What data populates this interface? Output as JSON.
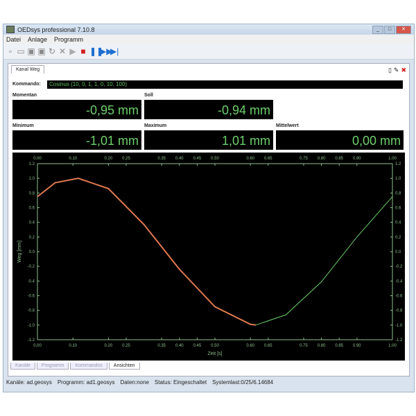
{
  "window": {
    "title": "OEDsys professional 7.10.8"
  },
  "menu": [
    "Datei",
    "Anlage",
    "Programm"
  ],
  "toolbar": {
    "icons": [
      "new-icon",
      "open-icon",
      "save-icon",
      "save-as-icon",
      "refresh-icon",
      "delete-icon",
      "play-icon",
      "stop-icon",
      "pause-icon",
      "step-icon",
      "skip-end-icon"
    ],
    "accent": "#1e6fd0",
    "stop_color": "#d42020"
  },
  "panel": {
    "tab": "Kanal Weg",
    "kommando_label": "Kommando:",
    "kommando_value": "Cosinus (10, 0, 1, 1, 0, 10, 100)"
  },
  "readouts": {
    "momentan": {
      "label": "Momentan",
      "value": "-0,95 mm"
    },
    "soll": {
      "label": "Soll",
      "value": "-0,94 mm"
    },
    "minimum": {
      "label": "Minimum",
      "value": "-1,01 mm"
    },
    "maximum": {
      "label": "Maximum",
      "value": "1,01 mm"
    },
    "mittelwert": {
      "label": "Mittelwert",
      "value": "0,00 mm"
    }
  },
  "chart_data": {
    "type": "line",
    "xlabel": "Zeit [s]",
    "ylabel": "Weg [mm]",
    "xlim": [
      0,
      1
    ],
    "ylim": [
      -1.2,
      1.2
    ],
    "xticks": [
      "0.00",
      "0.10",
      "0.20",
      "0.25",
      "0.35",
      "0.40",
      "0.45",
      "0.50",
      "0.60",
      "0.65",
      "0.75",
      "0.80",
      "0.85",
      "0.90",
      "1.00"
    ],
    "yticks": [
      "1.2",
      "1.0",
      "0.8",
      "0.6",
      "0.4",
      "0.2",
      "0.0",
      "-0.2",
      "-0.4",
      "-0.6",
      "-0.8",
      "-1.0",
      "-1.2"
    ],
    "series": [
      {
        "x": [
          0,
          0.05,
          0.115,
          0.2,
          0.3,
          0.4,
          0.5,
          0.6,
          0.615,
          0.7,
          0.8,
          0.9,
          1.0
        ],
        "y": [
          0.75,
          0.94,
          1.0,
          0.86,
          0.37,
          -0.24,
          -0.75,
          -0.99,
          -1.0,
          -0.86,
          -0.41,
          0.2,
          0.75
        ],
        "colors": [
          "#e07a50",
          "#6ccf6c"
        ]
      }
    ],
    "grid": false
  },
  "bottom_tabs": [
    "Kanäle",
    "Programm",
    "Kommandos",
    "Ansichten"
  ],
  "status": [
    "Kanäle: ad.geosys",
    "Programm: ad1.geosys",
    "Daten:none",
    "Status: Eingeschaltet",
    "Systemlast:0/25/6.14684"
  ]
}
